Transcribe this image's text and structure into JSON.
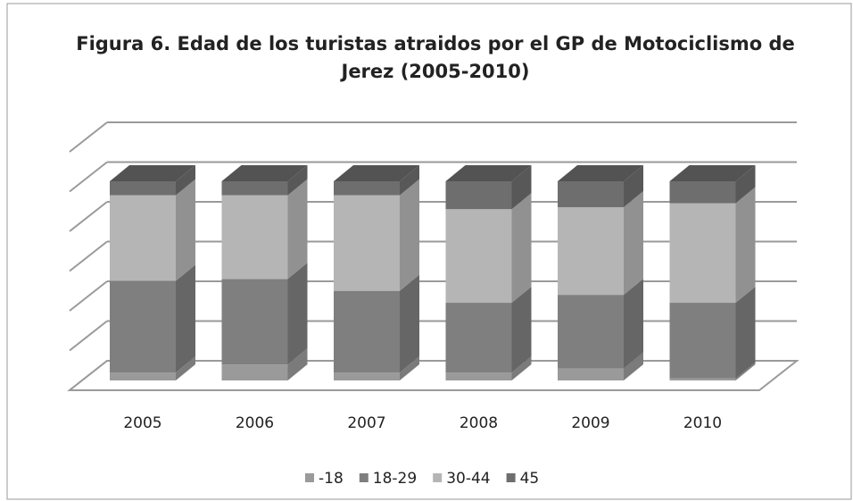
{
  "chart_data": {
    "type": "bar",
    "stacked": true,
    "title": "Figura 6. Edad de los turistas atraidos por el GP de Motociclismo de Jerez (2005-2010)",
    "categories": [
      "2005",
      "2006",
      "2007",
      "2008",
      "2009",
      "2010"
    ],
    "series": [
      {
        "name": "-18",
        "color": "#9a9a9a",
        "values": [
          4,
          8,
          4,
          4,
          6,
          1
        ]
      },
      {
        "name": "18-29",
        "color": "#7f7f7f",
        "values": [
          46,
          43,
          41,
          35,
          37,
          38
        ]
      },
      {
        "name": "30-44",
        "color": "#b5b5b5",
        "values": [
          43,
          42,
          48,
          47,
          44,
          50
        ]
      },
      {
        "name": "45",
        "color": "#6e6e6e",
        "values": [
          7,
          7,
          7,
          14,
          13,
          11
        ]
      }
    ],
    "ylim": [
      0,
      100
    ],
    "grid": true,
    "legend": "bottom"
  }
}
